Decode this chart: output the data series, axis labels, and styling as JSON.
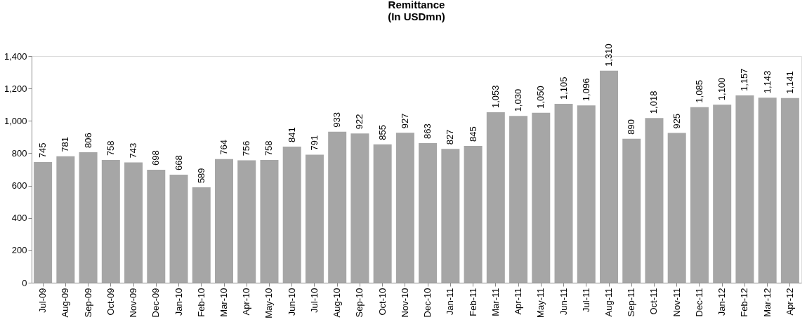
{
  "chart_data": {
    "type": "bar",
    "title": "Remittance\n(In USDmn)",
    "categories": [
      "Jul-09",
      "Aug-09",
      "Sep-09",
      "Oct-09",
      "Nov-09",
      "Dec-09",
      "Jan-10",
      "Feb-10",
      "Mar-10",
      "Apr-10",
      "May-10",
      "Jun-10",
      "Jul-10",
      "Aug-10",
      "Sep-10",
      "Oct-10",
      "Nov-10",
      "Dec-10",
      "Jan-11",
      "Feb-11",
      "Mar-11",
      "Apr-11",
      "May-11",
      "Jun-11",
      "Jul-11",
      "Aug-11",
      "Sep-11",
      "Oct-11",
      "Nov-11",
      "Dec-11",
      "Jan-12",
      "Feb-12",
      "Mar-12",
      "Apr-12"
    ],
    "values": [
      745,
      781,
      806,
      758,
      743,
      698,
      668,
      589,
      764,
      756,
      758,
      841,
      791,
      933,
      922,
      855,
      927,
      863,
      827,
      845,
      1053,
      1030,
      1050,
      1105,
      1096,
      1310,
      890,
      1018,
      925,
      1085,
      1100,
      1157,
      1143,
      1141
    ],
    "value_labels": [
      "745",
      "781",
      "806",
      "758",
      "743",
      "698",
      "668",
      "589",
      "764",
      "756",
      "758",
      "841",
      "791",
      "933",
      "922",
      "855",
      "927",
      "863",
      "827",
      "845",
      "1,053",
      "1,030",
      "1,050",
      "1,105",
      "1,096",
      "1,310",
      "890",
      "1,018",
      "925",
      "1,085",
      "1,100",
      "1,157",
      "1,143",
      "1,141"
    ],
    "color": "#a6a6a6",
    "ylim": [
      0,
      1400
    ],
    "yticks": [
      0,
      200,
      400,
      600,
      800,
      {
        "value": 1000,
        "label": "1,000"
      },
      {
        "value": 1200,
        "label": "1,200"
      },
      {
        "value": 1400,
        "label": "1,400"
      }
    ],
    "grid": false
  }
}
